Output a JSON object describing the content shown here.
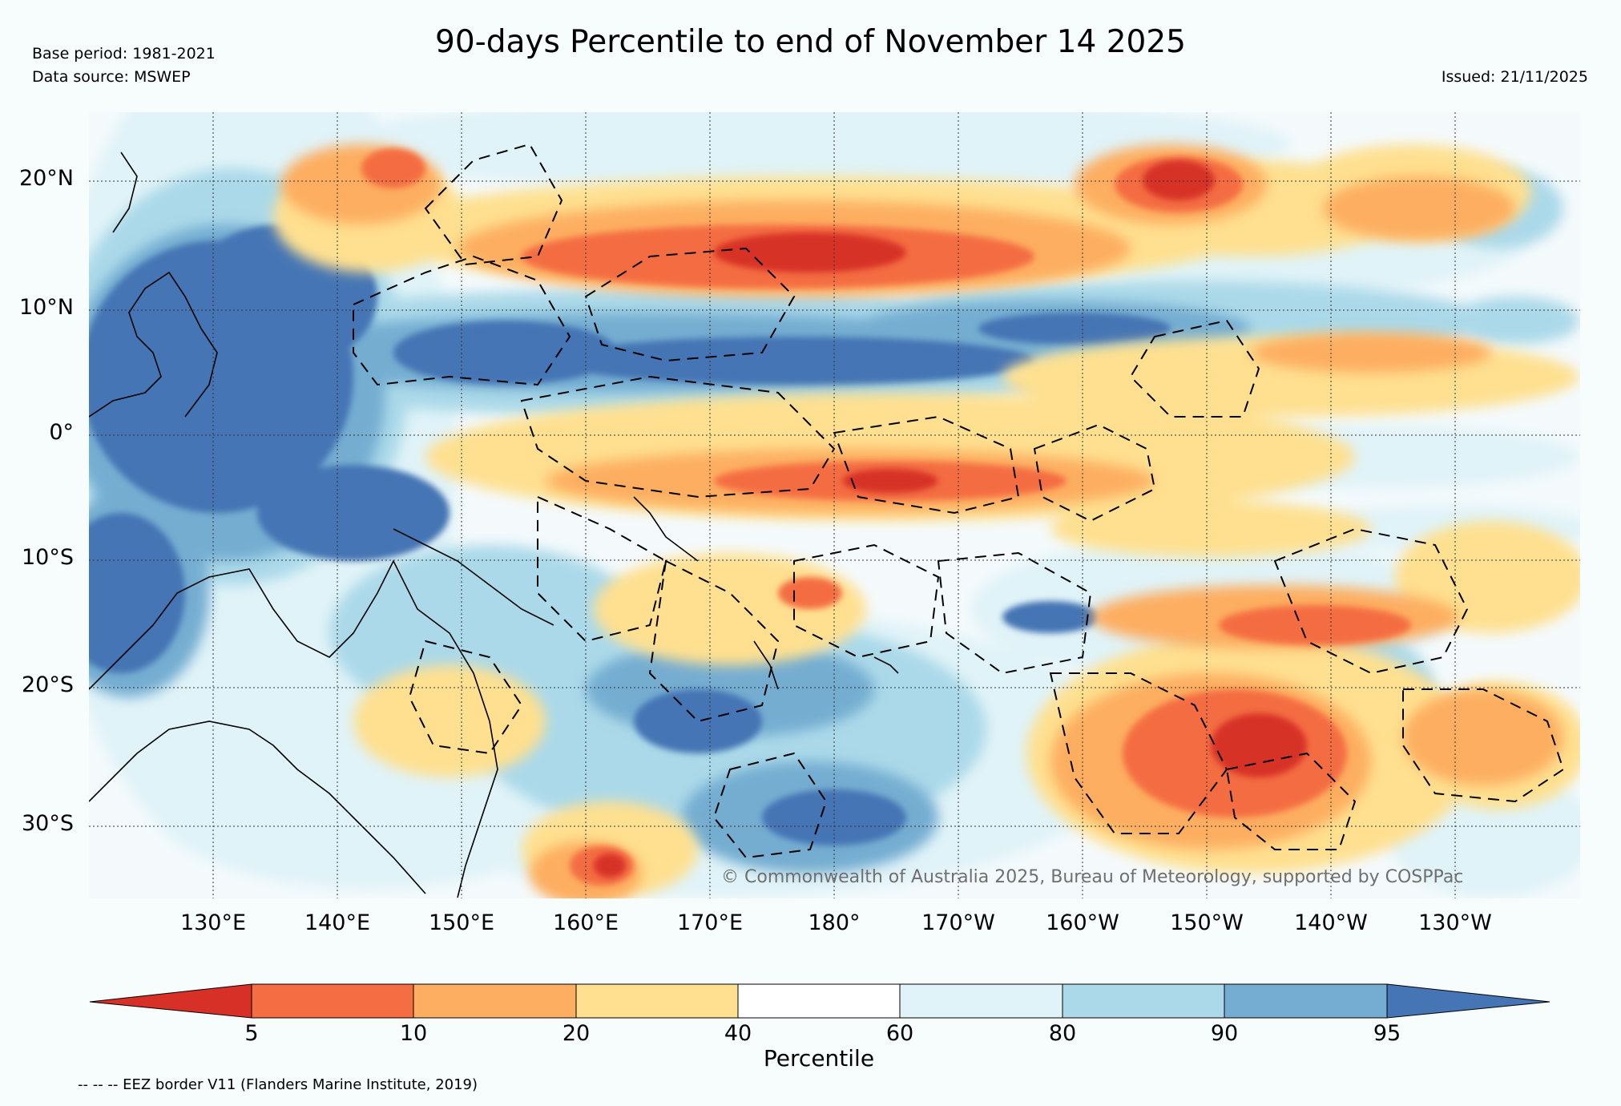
{
  "header": {
    "title": "90-days Percentile to end of November 14 2025",
    "base_period": "Base period: 1981-2021",
    "data_source": "Data source: MSWEP",
    "issued": "Issued: 21/11/2025"
  },
  "map": {
    "lat_labels": [
      "20°N",
      "10°N",
      "0°",
      "10°S",
      "20°S",
      "30°S"
    ],
    "lon_labels": [
      "130°E",
      "140°E",
      "150°E",
      "160°E",
      "170°E",
      "180°",
      "170°W",
      "160°W",
      "150°W",
      "140°W",
      "130°W"
    ],
    "copyright": "© Commonwealth of Australia 2025, Bureau of Meteorology, supported by COSPPac"
  },
  "colorbar": {
    "title": "Percentile",
    "ticks": [
      "5",
      "10",
      "20",
      "40",
      "60",
      "80",
      "90",
      "95"
    ],
    "colors": [
      "#d73027",
      "#f46d43",
      "#fdae61",
      "#fee090",
      "#ffffff",
      "#e0f3f8",
      "#abd9e9",
      "#74add1",
      "#4575b4"
    ]
  },
  "footer": {
    "eez_note": "-- -- -- EEZ border V11 (Flanders Marine Institute, 2019)"
  }
}
